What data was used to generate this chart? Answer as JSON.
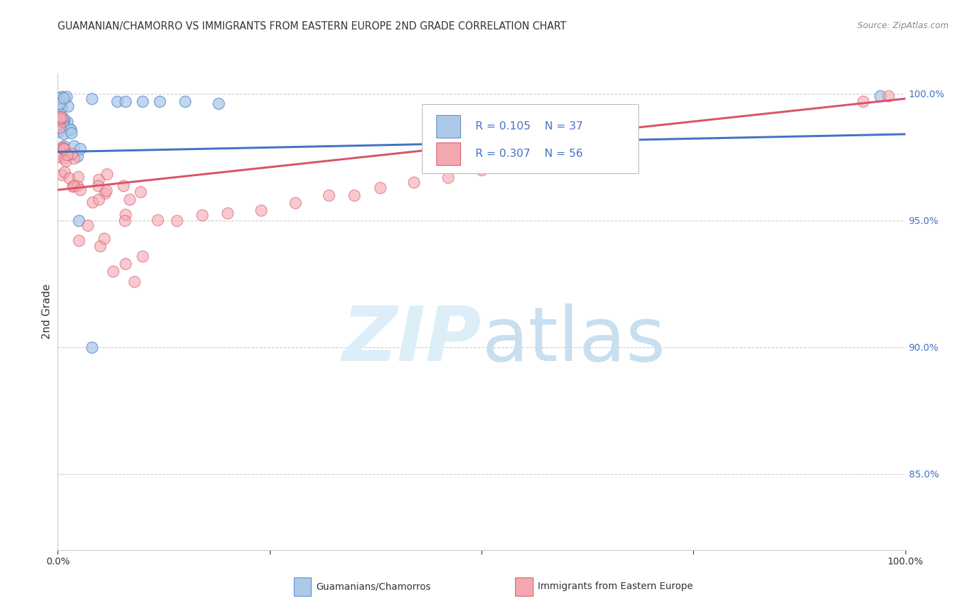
{
  "title": "GUAMANIAN/CHAMORRO VS IMMIGRANTS FROM EASTERN EUROPE 2ND GRADE CORRELATION CHART",
  "source": "Source: ZipAtlas.com",
  "ylabel": "2nd Grade",
  "ylabel_right_vals": [
    1.0,
    0.95,
    0.9,
    0.85
  ],
  "legend_label1": "Guamanians/Chamorros",
  "legend_label2": "Immigrants from Eastern Europe",
  "R1": 0.105,
  "N1": 37,
  "R2": 0.307,
  "N2": 56,
  "color1": "#aec9e8",
  "color2": "#f4a8b0",
  "edge_color1": "#5b8fce",
  "edge_color2": "#d96070",
  "line_color1": "#4472c4",
  "line_color2": "#d9536a",
  "xlim": [
    0.0,
    1.0
  ],
  "ylim": [
    0.82,
    1.008
  ],
  "background_color": "#ffffff",
  "watermark_zip": "ZIP",
  "watermark_atlas": "atlas",
  "watermark_color": "#ddeef8",
  "grid_color": "#cccccc",
  "right_tick_color": "#4472c4",
  "title_color": "#333333",
  "source_color": "#888888"
}
